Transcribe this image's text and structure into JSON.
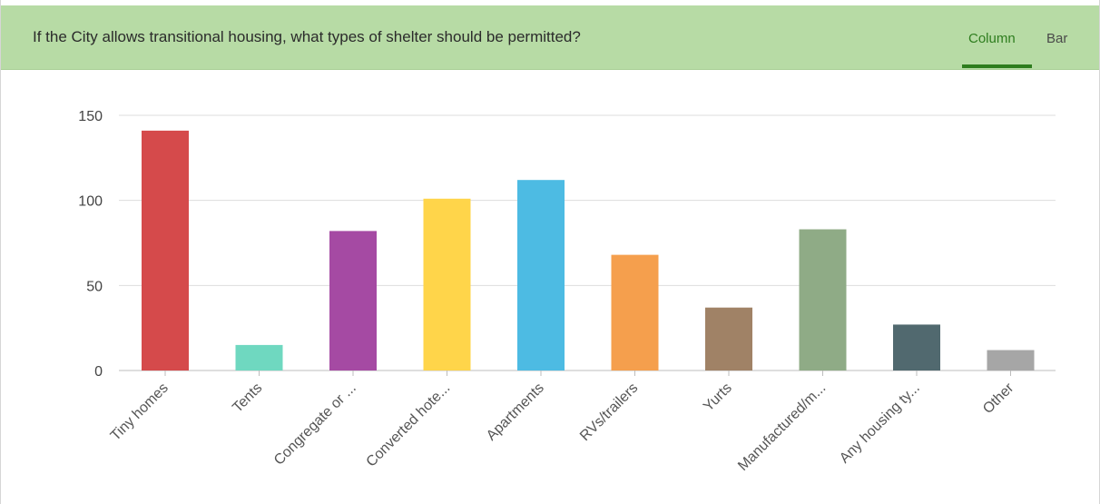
{
  "header": {
    "question": "If the City allows transitional housing, what types of shelter should be permitted?",
    "tabs": [
      {
        "label": "Column",
        "active": true
      },
      {
        "label": "Bar",
        "active": false
      }
    ]
  },
  "colors": {
    "header_bg": "#b7dba5",
    "active_tab": "#2e7d1e"
  },
  "chart_data": {
    "type": "bar",
    "categories": [
      "Tiny homes",
      "Tents",
      "Congregate or ...",
      "Converted hote...",
      "Apartments",
      "RVs/trailers",
      "Yurts",
      "Manufactured/m...",
      "Any housing ty...",
      "Other"
    ],
    "values": [
      141,
      15,
      82,
      101,
      112,
      68,
      37,
      83,
      27,
      12
    ],
    "bar_colors": [
      "#d54a4b",
      "#6fd8c0",
      "#a54aa3",
      "#ffd54a",
      "#4dbbe3",
      "#f59f4d",
      "#a08266",
      "#8fab86",
      "#51696f",
      "#a6a6a6"
    ],
    "ylim": [
      0,
      150
    ],
    "yticks": [
      0,
      50,
      100,
      150
    ],
    "grid": true,
    "legend": "none"
  }
}
